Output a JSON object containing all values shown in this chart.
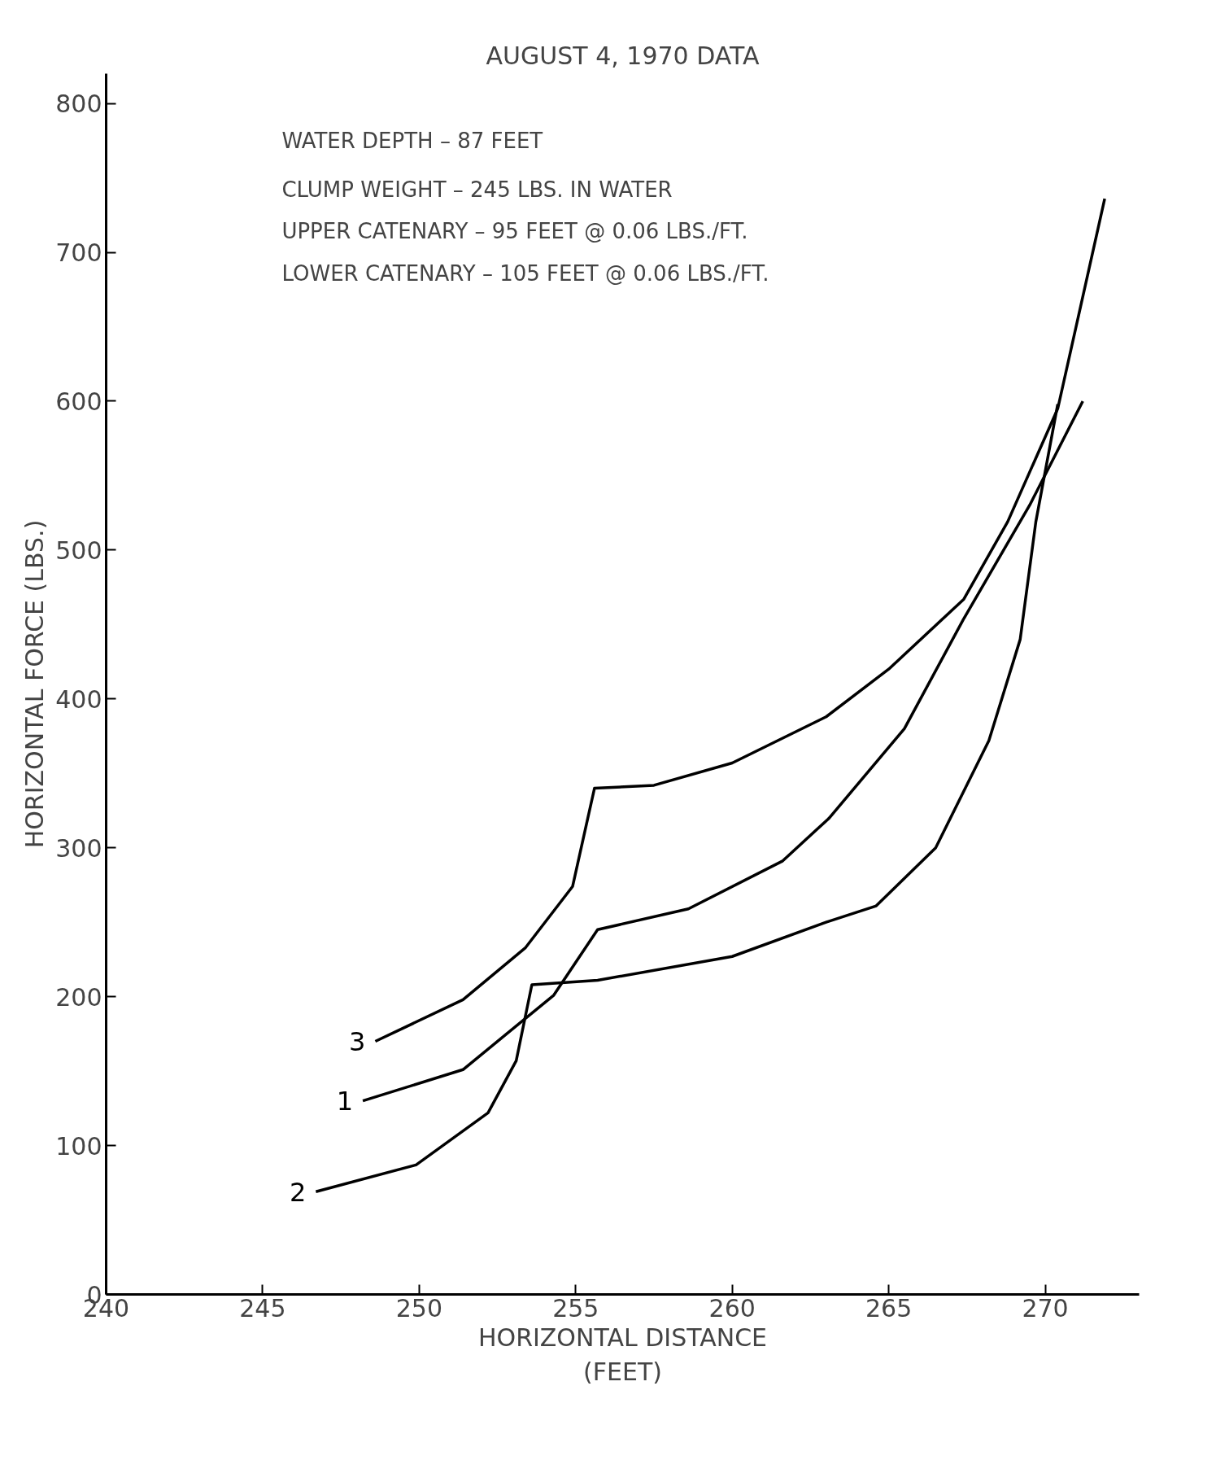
{
  "chart_data": {
    "type": "line",
    "title": "AUGUST 4, 1970 DATA",
    "xlabel": "HORIZONTAL DISTANCE\n(FEET)",
    "ylabel": "HORIZONTAL FORCE (LBS.)",
    "xlim": [
      240,
      273
    ],
    "ylim": [
      0,
      820
    ],
    "xticks": [
      240,
      245,
      250,
      255,
      260,
      265,
      270
    ],
    "yticks": [
      0,
      100,
      200,
      300,
      400,
      500,
      600,
      700,
      800
    ],
    "grid": false,
    "legend": false,
    "marker": "none",
    "line_style": "solid",
    "annotations": [
      "WATER DEPTH  –  87  FEET",
      "CLUMP WEIGHT – 245 LBS. IN WATER",
      "UPPER CATENARY  – 95 FEET @  0.06 LBS./FT.",
      "LOWER CATENARY – 105 FEET @  0.06 LBS./FT."
    ],
    "series": [
      {
        "name": "3",
        "color": "#000000",
        "x": [
          248.6,
          251.4,
          253.4,
          254.9,
          255.6,
          257.5,
          260,
          263,
          265,
          267.4,
          268.8,
          270.4,
          271.9
        ],
        "values": [
          170,
          198,
          233,
          274,
          340,
          342,
          357,
          388,
          420,
          467,
          519,
          595,
          736
        ]
      },
      {
        "name": "1",
        "color": "#000000",
        "x": [
          248.2,
          251.4,
          254.3,
          255.7,
          258.6,
          261.6,
          263.1,
          265.5,
          267.4,
          269.5,
          271.2
        ],
        "values": [
          130,
          151,
          201,
          245,
          259,
          291,
          320,
          380,
          454,
          530,
          600
        ]
      },
      {
        "name": "2",
        "color": "#000000",
        "x": [
          246.7,
          249.9,
          252.2,
          253.1,
          253.6,
          255.7,
          260,
          263,
          264.6,
          266.5,
          268.2,
          269.2,
          269.7,
          270.4
        ],
        "values": [
          69,
          87,
          122,
          157,
          208,
          211,
          227,
          250,
          261,
          300,
          372,
          440,
          519,
          598
        ]
      }
    ]
  }
}
